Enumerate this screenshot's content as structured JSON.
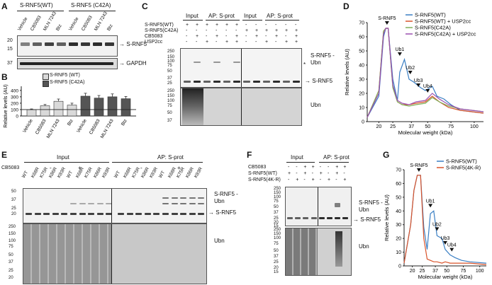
{
  "panelA": {
    "letter": "A",
    "groups": [
      "S-RNF5(WT)",
      "S-RNF5 (C42A)"
    ],
    "lanes": [
      "Vehicle",
      "CB5083",
      "MLN 7243",
      "Btz",
      "Vehicle",
      "CB5083",
      "MLN 7243",
      "Btz"
    ],
    "mw_top": [
      "20",
      "15"
    ],
    "mw_bottom": [
      "37"
    ],
    "label_top": "S-RNF5",
    "label_bottom": "GAPDH"
  },
  "panelB": {
    "letter": "B",
    "legend": [
      "S-RNF5 (WT)",
      "S-RNF5 (C42A)"
    ],
    "ylabel": "Relative levels (AU)"
  },
  "panelC": {
    "letter": "C",
    "headers": [
      "Input",
      "AP: S-prot",
      "Input",
      "AP: S-prot"
    ],
    "row_labels": [
      "S-RNF5(WT)",
      "S-RNF5(C42A)",
      "CB5083",
      "USP2cc"
    ],
    "row_signs": [
      [
        "+",
        "+",
        "+",
        "+",
        "+",
        "+",
        "-",
        "-",
        "-",
        "-",
        "-",
        "-"
      ],
      [
        "-",
        "-",
        "-",
        "-",
        "-",
        "-",
        "+",
        "+",
        "+",
        "+",
        "+",
        "+"
      ],
      [
        "-",
        "+",
        "-",
        "+",
        "-",
        "+",
        "-",
        "+",
        "-",
        "+",
        "-",
        "+"
      ],
      [
        "-",
        "-",
        "+",
        "-",
        "+",
        "+",
        "-",
        "-",
        "+",
        "-",
        "+",
        "+"
      ]
    ],
    "mw_top": [
      "250",
      "150",
      "100",
      "75",
      "50",
      "37",
      "25"
    ],
    "mw_bottom": [
      "250",
      "150",
      "100",
      "75",
      "50",
      "37"
    ],
    "label_ub_rnf5": "S-RNF5 -Ubn",
    "label_rnf5": "S-RNF5",
    "label_ubn": "Ubn",
    "star": "*"
  },
  "panelD": {
    "letter": "D",
    "peak_labels": [
      "S-RNF5",
      "Ub1",
      "Ub2",
      "Ub3",
      "Ub4"
    ],
    "legend": [
      "S-RNF5(WT)",
      "S-RNF5(WT) + USP2cc",
      "S-RNF5(C42A)",
      "S-RNF5(C42A) + USP2cc"
    ],
    "colors": [
      "#3a7fc4",
      "#d9532a",
      "#7fb05a",
      "#9b4fb0"
    ],
    "xlabel": "Molecular weight (kDa)",
    "ylabel": "Relative levels (AU)"
  },
  "panelE": {
    "letter": "E",
    "headers": [
      "Input",
      "AP: S-prot"
    ],
    "cb_label": "CB5083",
    "cb_signs": [
      "-",
      "+",
      "-",
      "+"
    ],
    "lanes": [
      "WT",
      "K68R",
      "K75R",
      "K86R",
      "K93R",
      "WT",
      "K68R",
      "K75R",
      "K86R",
      "K93R",
      "WT",
      "K68R",
      "K75R",
      "K86R",
      "K93R",
      "WT",
      "K68R",
      "K75R",
      "K86R",
      "K93R"
    ],
    "mw_top": [
      "50",
      "37",
      "25",
      "20"
    ],
    "mw_bottom": [
      "250",
      "150",
      "100",
      "75",
      "50",
      "37",
      "25",
      "20"
    ],
    "label_ub_rnf5": "S-RNF5 -Ubn",
    "label_rnf5": "S-RNF5",
    "label_ubn": "Ubn"
  },
  "panelF": {
    "letter": "F",
    "headers": [
      "Input",
      "AP: S-prot"
    ],
    "row_labels": [
      "CB5083",
      "S-RNF5(WT)",
      "S-RNF5(4K-R)"
    ],
    "row_signs": [
      [
        "-",
        "-",
        "+",
        "+",
        "-",
        "-",
        "+",
        "+"
      ],
      [
        "+",
        "-",
        "+",
        "-",
        "+",
        "-",
        "+",
        "-"
      ],
      [
        "-",
        "+",
        "-",
        "+",
        "-",
        "+",
        "-",
        "+"
      ]
    ],
    "mw_top": [
      "250",
      "150",
      "100",
      "75",
      "50",
      "37",
      "25",
      "20",
      "15"
    ],
    "mw_bottom": [
      "250",
      "150",
      "100",
      "75",
      "50",
      "37",
      "25",
      "20",
      "15"
    ],
    "label_ub_rnf5": "S-RNF5 -Ubn",
    "label_rnf5": "S-RNF5",
    "label_ubn": "Ubn"
  },
  "panelG": {
    "letter": "G",
    "peak_labels": [
      "S-RNF5",
      "Ub1",
      "Ub2",
      "Ub3",
      "Ub4"
    ],
    "legend": [
      "S-RNF5(WT)",
      "S-RNF5(4K-R)"
    ],
    "colors": [
      "#3a7fc4",
      "#d9532a"
    ],
    "xlabel": "Molecular weight (kDa)",
    "ylabel": "Relative levels (AU)"
  },
  "chart_data": [
    {
      "id": "B",
      "type": "bar",
      "categories": [
        "Vehicle",
        "CB5083",
        "MLN 7243",
        "Btz",
        "Vehicle",
        "CB5083",
        "MLN 7243",
        "Btz"
      ],
      "series": [
        {
          "name": "S-RNF5 (WT)",
          "values": [
            100,
            160,
            230,
            170,
            null,
            null,
            null,
            null
          ],
          "errors": [
            10,
            20,
            35,
            30,
            null,
            null,
            null,
            null
          ],
          "color": "#d9d9d9"
        },
        {
          "name": "S-RNF5 (C42A)",
          "values": [
            null,
            null,
            null,
            null,
            310,
            280,
            300,
            270
          ],
          "errors": [
            null,
            null,
            null,
            null,
            45,
            40,
            45,
            35
          ],
          "color": "#555555"
        }
      ],
      "ylabel": "Relative levels (AU)",
      "yticks": [
        0,
        100,
        200,
        300,
        400
      ],
      "ylim": [
        0,
        420
      ],
      "reference_line": 100
    },
    {
      "id": "D",
      "type": "line",
      "xlabel": "Molecular weight (kDa)",
      "ylabel": "Relative levels (AU)",
      "x_ticks": [
        "20",
        "25",
        "37",
        "50",
        "75",
        "100"
      ],
      "y_ticks": [
        0,
        10,
        20,
        30,
        40,
        50,
        60,
        70
      ],
      "ylim": [
        0,
        70
      ],
      "series": [
        {
          "name": "S-RNF5(WT)",
          "x": [
            0,
            10,
            14,
            16,
            18,
            22,
            26,
            28,
            32,
            36,
            40,
            46,
            50,
            56,
            60,
            66,
            72,
            80,
            100
          ],
          "y": [
            3,
            18,
            60,
            66,
            66,
            30,
            15,
            35,
            44,
            30,
            28,
            24,
            22,
            25,
            18,
            16,
            12,
            8,
            6
          ]
        },
        {
          "name": "S-RNF5(WT) + USP2cc",
          "x": [
            0,
            10,
            14,
            16,
            18,
            22,
            26,
            30,
            36,
            42,
            50,
            56,
            62,
            70,
            80,
            100
          ],
          "y": [
            3,
            22,
            64,
            66,
            66,
            25,
            14,
            12,
            12,
            13,
            14,
            18,
            14,
            10,
            8,
            6
          ]
        },
        {
          "name": "S-RNF5(C42A)",
          "x": [
            0,
            10,
            14,
            16,
            18,
            22,
            26,
            30,
            36,
            42,
            50,
            56,
            62,
            70,
            80,
            100
          ],
          "y": [
            3,
            22,
            64,
            66,
            66,
            24,
            14,
            12,
            11,
            12,
            13,
            17,
            14,
            11,
            9,
            7
          ]
        },
        {
          "name": "S-RNF5(C42A) + USP2cc",
          "x": [
            0,
            10,
            14,
            16,
            18,
            22,
            26,
            30,
            36,
            42,
            50,
            56,
            62,
            70,
            80,
            100
          ],
          "y": [
            3,
            20,
            62,
            66,
            66,
            26,
            15,
            13,
            12,
            14,
            15,
            20,
            16,
            12,
            9,
            7
          ]
        }
      ]
    },
    {
      "id": "G",
      "type": "line",
      "xlabel": "Molecular weight (kDa)",
      "ylabel": "Relative levels (AU)",
      "x_ticks": [
        "20",
        "25",
        "37",
        "50",
        "75",
        "100"
      ],
      "y_ticks": [
        0,
        10,
        20,
        30,
        40,
        50,
        60,
        70
      ],
      "ylim": [
        0,
        70
      ],
      "series": [
        {
          "name": "S-RNF5(WT)",
          "x": [
            0,
            8,
            12,
            16,
            20,
            24,
            28,
            32,
            36,
            40,
            46,
            50,
            56,
            62,
            70,
            80,
            100
          ],
          "y": [
            2,
            30,
            55,
            66,
            66,
            28,
            12,
            38,
            40,
            22,
            20,
            12,
            8,
            6,
            4,
            3,
            2
          ]
        },
        {
          "name": "S-RNF5(4K-R)",
          "x": [
            0,
            8,
            12,
            16,
            20,
            24,
            28,
            32,
            36,
            40,
            46,
            50,
            56,
            62,
            70,
            80,
            100
          ],
          "y": [
            2,
            30,
            55,
            66,
            66,
            20,
            5,
            4,
            3,
            3,
            2,
            3,
            2,
            2,
            2,
            2,
            1
          ]
        }
      ]
    }
  ]
}
